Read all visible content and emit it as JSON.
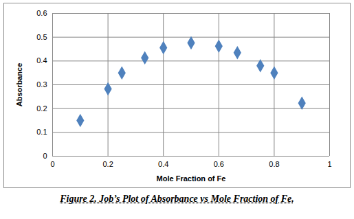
{
  "chart_data": {
    "type": "scatter",
    "x_label": "Mole Fraction of Fe",
    "y_label": "Absorbance",
    "caption": "Figure 2. Job’s Plot of Absorbance vs Mole Fraction of Fe.",
    "x": [
      0.1,
      0.2,
      0.25,
      0.333,
      0.4,
      0.5,
      0.6,
      0.667,
      0.75,
      0.8,
      0.9
    ],
    "values": [
      0.15,
      0.283,
      0.35,
      0.413,
      0.456,
      0.476,
      0.462,
      0.435,
      0.38,
      0.35,
      0.223
    ],
    "color": "#4f81bd",
    "marker": "diamond",
    "xlim": [
      0,
      1
    ],
    "xticks": [
      0,
      0.2,
      0.4,
      0.6,
      0.8,
      1
    ],
    "ylim": [
      0,
      0.6
    ],
    "yticks": [
      0,
      0.1,
      0.2,
      0.3,
      0.4,
      0.5,
      0.6
    ],
    "grid": true
  }
}
